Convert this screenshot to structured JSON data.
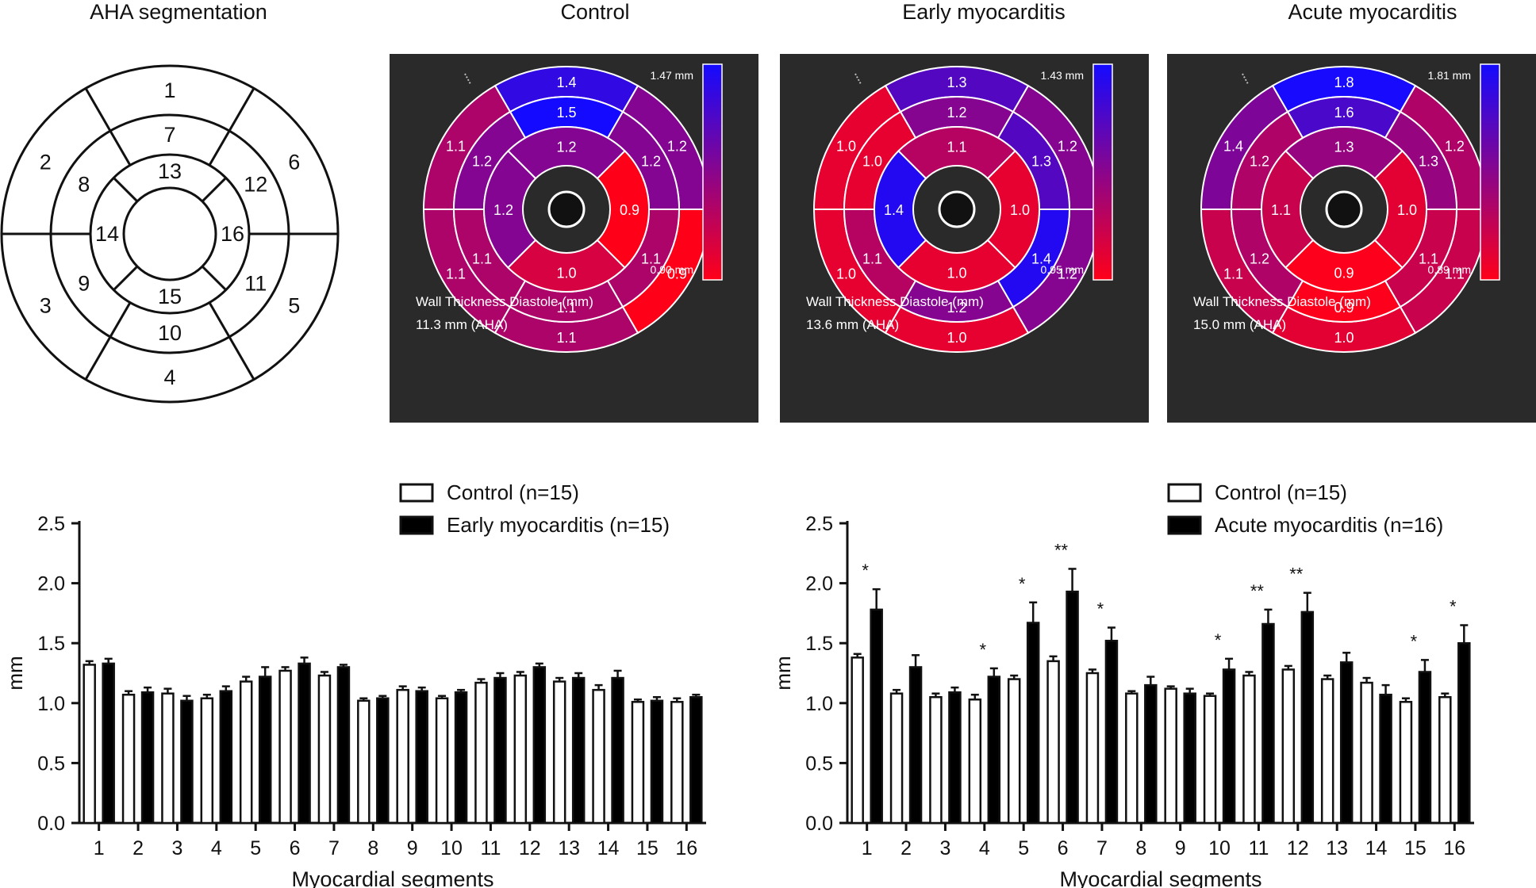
{
  "titles": {
    "aha": "AHA segmentation",
    "control": "Control",
    "early": "Early myocarditis",
    "acute": "Acute myocarditis"
  },
  "aha_segments": [
    "1",
    "2",
    "3",
    "4",
    "5",
    "6",
    "7",
    "8",
    "9",
    "10",
    "11",
    "12",
    "13",
    "14",
    "15",
    "16"
  ],
  "bullseyes": [
    {
      "values": [
        1.4,
        1.1,
        1.1,
        1.1,
        0.9,
        1.2,
        1.5,
        1.2,
        1.1,
        1.1,
        1.1,
        1.2,
        1.2,
        1.2,
        1.0,
        0.9
      ],
      "max_label": "1.47 mm",
      "min_label": "0.90 mm",
      "max": 1.47,
      "min": 0.9,
      "caption1": "Wall Thickness Diastole (mm)",
      "caption2": "11.3 mm (AHA)"
    },
    {
      "values": [
        1.3,
        1.0,
        1.0,
        1.0,
        1.2,
        1.2,
        1.2,
        1.0,
        1.1,
        1.2,
        1.4,
        1.3,
        1.1,
        1.4,
        1.0,
        1.0
      ],
      "max_label": "1.43 mm",
      "min_label": "0.95 mm",
      "max": 1.43,
      "min": 0.95,
      "caption1": "Wall Thickness Diastole (mm)",
      "caption2": "13.6 mm (AHA)"
    },
    {
      "values": [
        1.8,
        1.4,
        1.1,
        1.0,
        1.1,
        1.2,
        1.6,
        1.2,
        1.2,
        0.9,
        1.1,
        1.3,
        1.3,
        1.1,
        0.9,
        1.0
      ],
      "max_label": "1.81 mm",
      "min_label": "0.89 mm",
      "max": 1.81,
      "min": 0.89,
      "caption1": "Wall Thickness Diastole (mm)",
      "caption2": "15.0 mm (AHA)"
    }
  ],
  "chart_data": [
    {
      "type": "bar",
      "categories": [
        "1",
        "2",
        "3",
        "4",
        "5",
        "6",
        "7",
        "8",
        "9",
        "10",
        "11",
        "12",
        "13",
        "14",
        "15",
        "16"
      ],
      "series": [
        {
          "name": "Control (n=15)",
          "values": [
            1.32,
            1.07,
            1.08,
            1.04,
            1.18,
            1.27,
            1.23,
            1.02,
            1.11,
            1.04,
            1.17,
            1.23,
            1.18,
            1.11,
            1.01,
            1.01
          ],
          "errors": [
            0.03,
            0.03,
            0.04,
            0.03,
            0.04,
            0.03,
            0.03,
            0.02,
            0.03,
            0.02,
            0.03,
            0.03,
            0.03,
            0.04,
            0.02,
            0.03
          ]
        },
        {
          "name": "Early myocarditis (n=15)",
          "values": [
            1.33,
            1.09,
            1.02,
            1.1,
            1.22,
            1.33,
            1.3,
            1.04,
            1.1,
            1.09,
            1.21,
            1.3,
            1.21,
            1.21,
            1.02,
            1.05
          ],
          "errors": [
            0.04,
            0.04,
            0.04,
            0.04,
            0.08,
            0.05,
            0.02,
            0.02,
            0.03,
            0.02,
            0.04,
            0.03,
            0.04,
            0.06,
            0.03,
            0.02
          ]
        }
      ],
      "xlabel": "Myocardial segments",
      "ylabel": "mm",
      "ylim": [
        0,
        2.5
      ],
      "yticks": [
        "0.0",
        "0.5",
        "1.0",
        "1.5",
        "2.0",
        "2.5"
      ],
      "legend": "top-right"
    },
    {
      "type": "bar",
      "categories": [
        "1",
        "2",
        "3",
        "4",
        "5",
        "6",
        "7",
        "8",
        "9",
        "10",
        "11",
        "12",
        "13",
        "14",
        "15",
        "16"
      ],
      "series": [
        {
          "name": "Control (n=15)",
          "values": [
            1.38,
            1.08,
            1.05,
            1.03,
            1.2,
            1.35,
            1.25,
            1.08,
            1.12,
            1.06,
            1.23,
            1.28,
            1.2,
            1.17,
            1.01,
            1.05
          ],
          "errors": [
            0.03,
            0.03,
            0.03,
            0.04,
            0.03,
            0.04,
            0.03,
            0.02,
            0.02,
            0.02,
            0.03,
            0.03,
            0.03,
            0.04,
            0.03,
            0.03
          ]
        },
        {
          "name": "Acute myocarditis (n=16)",
          "values": [
            1.78,
            1.3,
            1.09,
            1.22,
            1.67,
            1.93,
            1.52,
            1.15,
            1.08,
            1.28,
            1.66,
            1.76,
            1.34,
            1.07,
            1.26,
            1.5
          ],
          "errors": [
            0.17,
            0.1,
            0.04,
            0.07,
            0.17,
            0.19,
            0.11,
            0.07,
            0.04,
            0.09,
            0.12,
            0.16,
            0.08,
            0.08,
            0.1,
            0.15
          ]
        }
      ],
      "significance": [
        "*",
        "",
        "",
        "*",
        "*",
        "**",
        "*",
        "",
        "",
        "*",
        "**",
        "**",
        "",
        "",
        "*",
        "*"
      ],
      "xlabel": "Myocardial segments",
      "ylabel": "mm",
      "ylim": [
        0,
        2.5
      ],
      "yticks": [
        "0.0",
        "0.5",
        "1.0",
        "1.5",
        "2.0",
        "2.5"
      ],
      "legend": "top-right"
    }
  ]
}
